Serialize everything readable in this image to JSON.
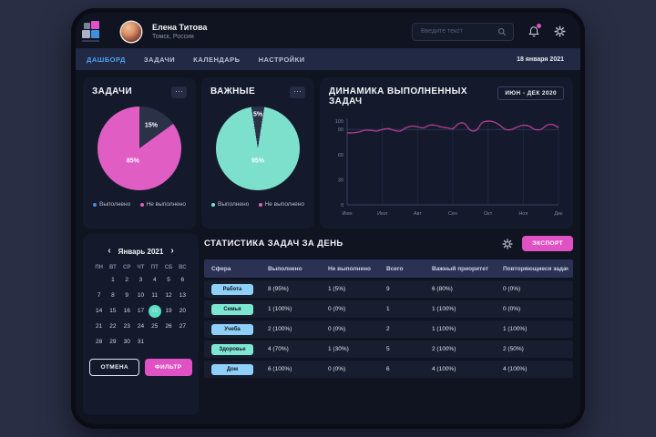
{
  "colors": {
    "accent_pink": "#e05ec4",
    "accent_teal": "#7ce0cd",
    "accent_blue": "#4da3f5",
    "legend_blue": "#3f8fe0",
    "dark_slice": "#2b3248",
    "line_stroke": "#b63c97",
    "badge_blue_bg": "#8fd0f8",
    "badge_teal_bg": "#7de6d2",
    "button_pink": "#e051c3",
    "selected_day_teal": "#57dfc4"
  },
  "header": {
    "user_name": "Елена Титова",
    "user_location": "Томск, Россия",
    "search_placeholder": "Введите текст"
  },
  "nav": {
    "items": [
      {
        "id": "dashboard",
        "label": "ДАШБОРД",
        "active": true
      },
      {
        "id": "tasks",
        "label": "ЗАДАЧИ",
        "active": false
      },
      {
        "id": "calendar",
        "label": "КАЛЕНДАРЬ",
        "active": false
      },
      {
        "id": "settings",
        "label": "НАСТРОЙКИ",
        "active": false
      }
    ],
    "date": "18 января 2021"
  },
  "tasks_card": {
    "title": "ЗАДАЧИ",
    "menu": "···",
    "chart_data": {
      "type": "pie",
      "start_deg": 0,
      "slices": [
        {
          "label": "Выполнено",
          "display": "15%",
          "value": 15,
          "color": "#2b3248",
          "label_r": 0.62
        },
        {
          "label": "Не выполнено",
          "display": "85%",
          "value": 85,
          "color": "#e05ec4",
          "label_r": 0.34
        }
      ]
    },
    "legend": [
      {
        "label": "Выполнено",
        "color": "#3f8fe0"
      },
      {
        "label": "Не выполнено",
        "color": "#e05ec4"
      }
    ]
  },
  "important_card": {
    "title": "ВАЖНЫЕ",
    "menu": "···",
    "chart_data": {
      "type": "pie",
      "start_deg": -9,
      "slices": [
        {
          "label": "Не выполнено",
          "display": "5%",
          "value": 5,
          "color": "#2b3248",
          "label_r": 0.8
        },
        {
          "label": "Выполнено",
          "display": "95%",
          "value": 95,
          "color": "#7ce0cd",
          "label_r": 0.3
        }
      ]
    },
    "legend": [
      {
        "label": "Выполнено",
        "color": "#7ce0cd"
      },
      {
        "label": "Не выполнено",
        "color": "#e05ec4"
      }
    ]
  },
  "dynamics_card": {
    "title": "ДИНАМИКА ВЫПОЛНЕННЫХ ЗАДАЧ",
    "badge": "ИЮН - ДЕК 2020",
    "chart_data": {
      "type": "line",
      "x_labels": [
        "Июн",
        "Июл",
        "Авг",
        "Сен",
        "Окт",
        "Ноя",
        "Дек"
      ],
      "y_ticks": [
        100,
        90,
        60,
        30,
        0
      ],
      "ylim": [
        0,
        100
      ],
      "grid": true,
      "series": [
        {
          "name": "Выполненные задачи",
          "color": "#b63c97",
          "values": [
            86,
            86,
            87,
            89,
            89,
            88,
            90,
            91,
            89,
            88,
            92,
            94,
            93,
            92,
            95,
            95,
            93,
            92,
            91,
            97,
            97,
            89,
            89,
            98,
            100,
            99,
            95,
            90,
            90,
            93,
            95,
            94,
            90,
            90,
            95,
            96,
            92
          ]
        }
      ]
    }
  },
  "calendar": {
    "prev_icon": "‹",
    "next_icon": "›",
    "month_label": "Январь 2021",
    "day_names": [
      "ПН",
      "ВТ",
      "СР",
      "ЧТ",
      "ПТ",
      "СБ",
      "ВС"
    ],
    "weeks": [
      [
        "",
        "1",
        "2",
        "3",
        "4",
        "5",
        "6"
      ],
      [
        "7",
        "8",
        "9",
        "10",
        "11",
        "12",
        "13"
      ],
      [
        "14",
        "15",
        "16",
        "17",
        "18",
        "19",
        "20"
      ],
      [
        "21",
        "22",
        "23",
        "24",
        "25",
        "26",
        "27"
      ],
      [
        "28",
        "29",
        "30",
        "31",
        "",
        "",
        ""
      ]
    ],
    "selected_day": "18",
    "cancel_label": "ОТМЕНА",
    "filter_label": "ФИЛЬТР"
  },
  "stats": {
    "title": "СТАТИСТИКА ЗАДАЧ ЗА ДЕНЬ",
    "export_label": "ЭКСПОРТ",
    "columns": [
      "Сфера",
      "Выполнено",
      "Не выполнено",
      "Всего",
      "Важный приоритет",
      "Повторяющиеся задачи"
    ],
    "rows": [
      {
        "sphere": "Работа",
        "badge": "blue",
        "done": "8 (95%)",
        "not_done": "1 (5%)",
        "total": "9",
        "priority": "6 (80%)",
        "recurring": "0 (0%)"
      },
      {
        "sphere": "Семья",
        "badge": "teal",
        "done": "1 (100%)",
        "not_done": "0 (0%)",
        "total": "1",
        "priority": "1 (100%)",
        "recurring": "0 (0%)"
      },
      {
        "sphere": "Учеба",
        "badge": "blue",
        "done": "2 (100%)",
        "not_done": "0 (0%)",
        "total": "2",
        "priority": "1 (100%)",
        "recurring": "1 (100%)"
      },
      {
        "sphere": "Здоровье",
        "badge": "teal",
        "done": "4 (70%)",
        "not_done": "1 (30%)",
        "total": "5",
        "priority": "2 (100%)",
        "recurring": "2 (50%)"
      },
      {
        "sphere": "Дом",
        "badge": "blue",
        "done": "6 (100%)",
        "not_done": "0 (0%)",
        "total": "6",
        "priority": "4 (100%)",
        "recurring": "4 (100%)"
      }
    ]
  }
}
